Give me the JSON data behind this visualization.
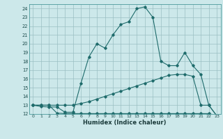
{
  "xlabel": "Humidex (Indice chaleur)",
  "bg_color": "#cce8ea",
  "grid_color": "#9abfc2",
  "line_color": "#1e6b6b",
  "xlim": [
    -0.5,
    23.5
  ],
  "ylim": [
    12,
    24.5
  ],
  "xticks": [
    0,
    1,
    2,
    3,
    4,
    5,
    6,
    7,
    8,
    9,
    10,
    11,
    12,
    13,
    14,
    15,
    16,
    17,
    18,
    19,
    20,
    21,
    22,
    23
  ],
  "yticks": [
    12,
    13,
    14,
    15,
    16,
    17,
    18,
    19,
    20,
    21,
    22,
    23,
    24
  ],
  "line1_x": [
    0,
    1,
    2,
    3,
    4,
    5,
    6,
    7,
    8,
    9,
    10,
    11,
    12,
    13,
    14,
    15,
    16,
    17,
    18,
    19,
    20,
    21,
    22,
    23
  ],
  "line1_y": [
    13.0,
    12.85,
    12.8,
    12.8,
    12.2,
    12.2,
    15.5,
    18.5,
    20.0,
    19.5,
    21.0,
    22.2,
    22.5,
    24.0,
    24.2,
    23.0,
    18.0,
    17.5,
    17.5,
    19.0,
    17.5,
    16.5,
    13.0,
    11.8
  ],
  "line2_x": [
    0,
    1,
    2,
    3,
    4,
    5,
    6,
    7,
    8,
    9,
    10,
    11,
    12,
    13,
    14,
    15,
    16,
    17,
    18,
    19,
    20,
    21,
    22,
    23
  ],
  "line2_y": [
    13.0,
    13.0,
    13.0,
    13.0,
    13.0,
    13.0,
    13.2,
    13.4,
    13.7,
    14.0,
    14.3,
    14.6,
    14.9,
    15.2,
    15.5,
    15.8,
    16.1,
    16.4,
    16.5,
    16.5,
    16.3,
    13.0,
    13.0,
    11.8
  ],
  "line3_x": [
    0,
    1,
    2,
    3,
    4,
    5,
    6,
    7,
    8,
    9,
    10,
    11,
    12,
    13,
    14,
    15,
    16,
    17,
    18,
    19,
    20,
    21,
    22,
    23
  ],
  "line3_y": [
    13.0,
    13.0,
    13.0,
    12.1,
    12.05,
    12.05,
    12.05,
    12.05,
    12.05,
    12.05,
    12.05,
    12.05,
    12.05,
    12.05,
    12.05,
    12.05,
    12.05,
    12.05,
    12.05,
    12.05,
    12.05,
    12.05,
    12.05,
    11.8
  ]
}
